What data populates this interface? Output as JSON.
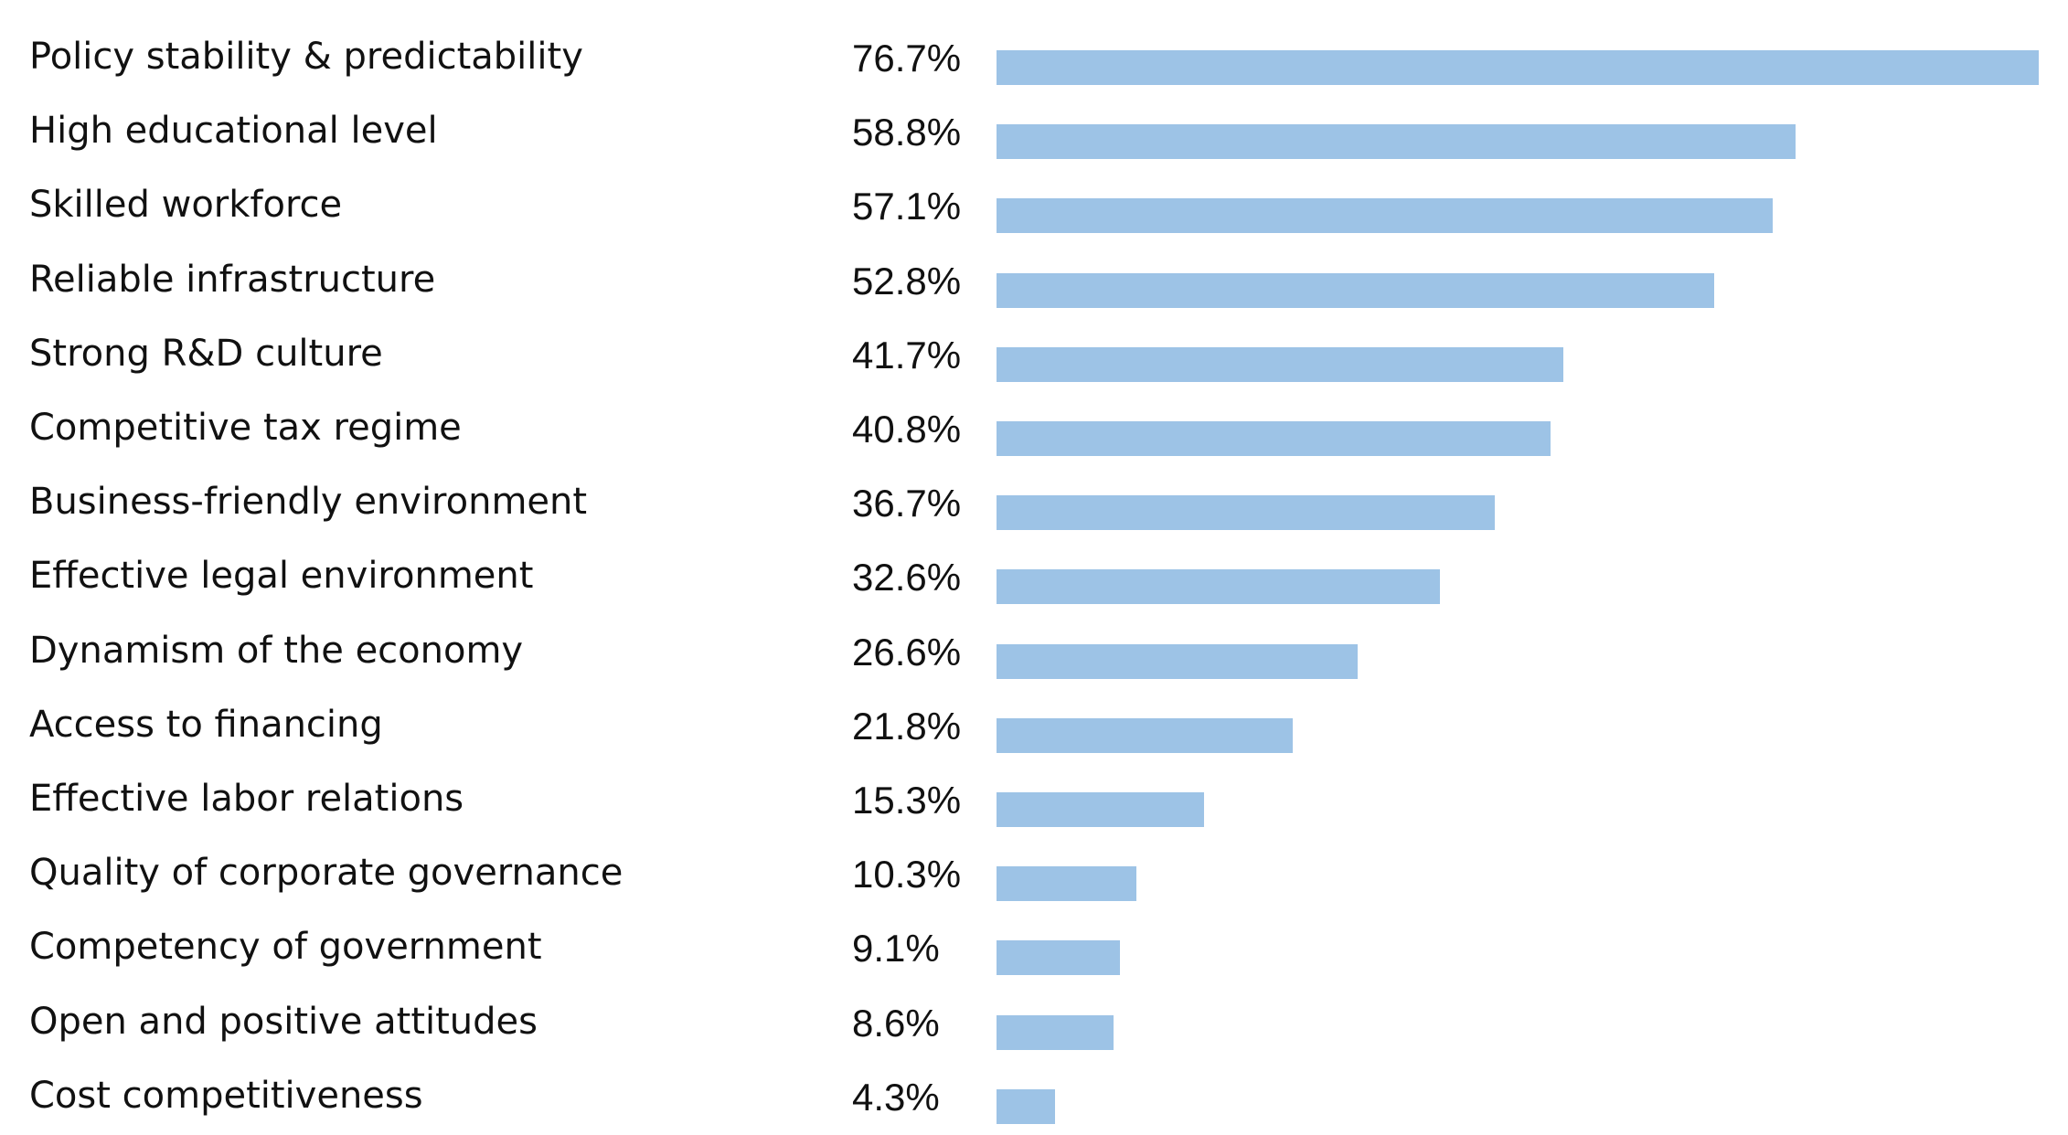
{
  "chart_data": {
    "type": "bar",
    "orientation": "horizontal",
    "categories": [
      "Policy stability & predictability",
      "High educational level",
      "Skilled workforce",
      "Reliable infrastructure",
      "Strong R&D culture",
      "Competitive tax regime",
      "Business-friendly environment",
      "Effective legal environment",
      "Dynamism of the economy",
      "Access to financing",
      "Effective labor relations",
      "Quality of corporate governance",
      "Competency of government",
      "Open and positive attitudes",
      "Cost competitiveness"
    ],
    "values": [
      76.7,
      58.8,
      57.1,
      52.8,
      41.7,
      40.8,
      36.7,
      32.6,
      26.6,
      21.8,
      15.3,
      10.3,
      9.1,
      8.6,
      4.3
    ],
    "value_labels": [
      "76.7%",
      "58.8%",
      "57.1%",
      "52.8%",
      "41.7%",
      "40.8%",
      "36.7%",
      "32.6%",
      "26.6%",
      "21.8%",
      "15.3%",
      "10.3%",
      "9.1%",
      "8.6%",
      "4.3%"
    ],
    "unit": "%",
    "bar_color": "#9dc3e6",
    "title": "",
    "xlabel": "",
    "ylabel": "",
    "grid": false,
    "legend": false
  }
}
